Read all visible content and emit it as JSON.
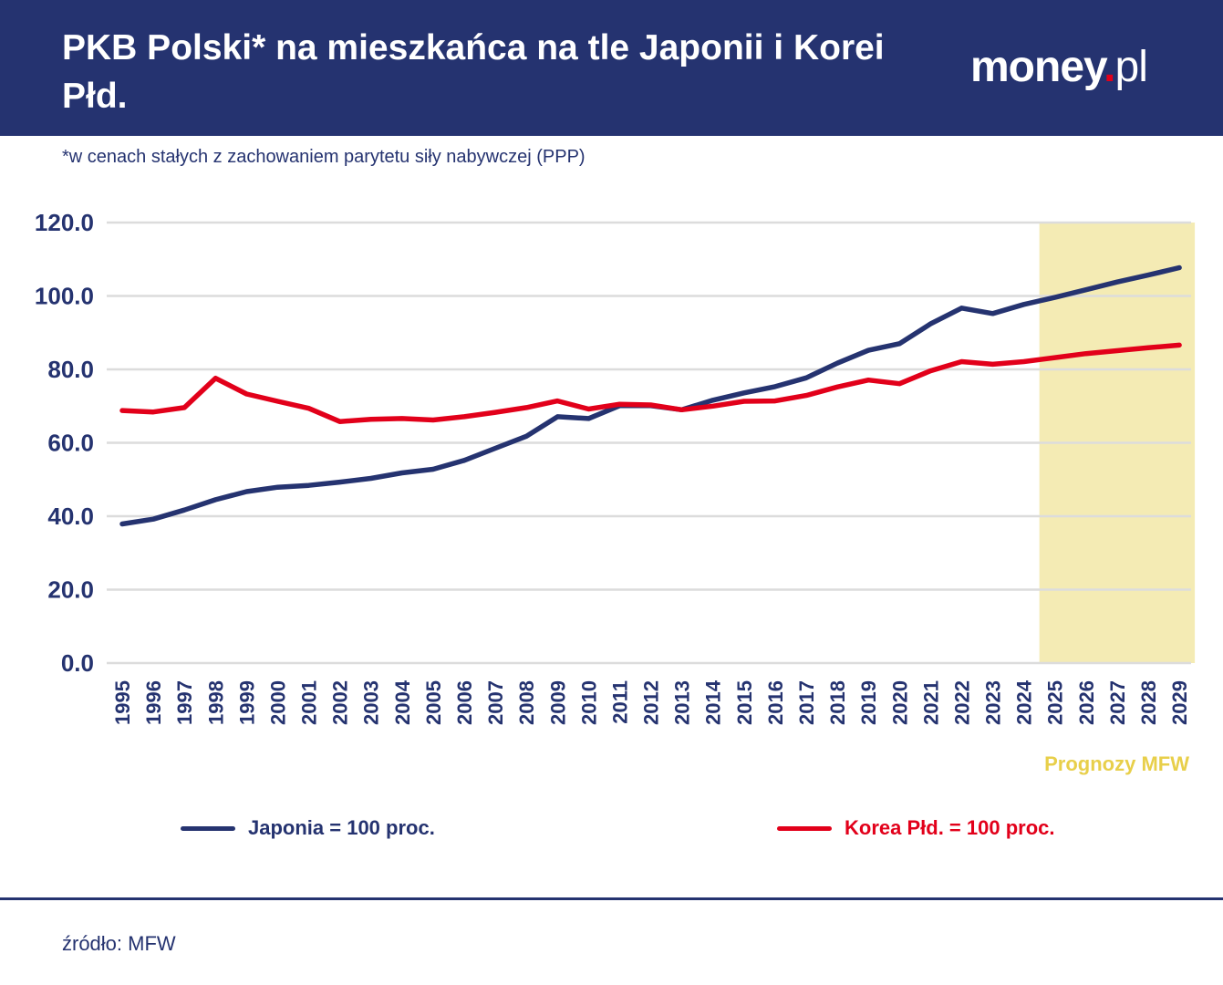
{
  "header": {
    "title": "PKB Polski* na mieszkańca na tle Japonii i Korei Płd.",
    "logo_main": "money",
    "logo_dot": ".",
    "logo_suffix": "pl"
  },
  "subtitle": "*w cenach stałych z zachowaniem parytetu siły nabywczej (PPP)",
  "source": "źródło: MFW",
  "colors": {
    "header_bg": "#253370",
    "japan": "#253370",
    "korea": "#e2001a",
    "forecast_band": "#f4ebb4",
    "forecast_label": "#e8cf4a",
    "grid": "#dcdcdc"
  },
  "chart_data": {
    "type": "line",
    "title": "",
    "xlabel": "",
    "ylabel": "",
    "x": [
      "1995",
      "1996",
      "1997",
      "1998",
      "1999",
      "2000",
      "2001",
      "2002",
      "2003",
      "2004",
      "2005",
      "2006",
      "2007",
      "2008",
      "2009",
      "2010",
      "2011",
      "2012",
      "2013",
      "2014",
      "2015",
      "2016",
      "2017",
      "2018",
      "2019",
      "2020",
      "2021",
      "2022",
      "2023",
      "2024",
      "2025",
      "2026",
      "2027",
      "2028",
      "2029"
    ],
    "ylim": [
      0,
      120
    ],
    "yticks": [
      "0.0",
      "20.0",
      "40.0",
      "60.0",
      "80.0",
      "100.0",
      "120.0"
    ],
    "grid": true,
    "legend_position": "bottom",
    "forecast": {
      "from": "2025",
      "to": "2029",
      "label": "Prognozy MFW"
    },
    "series": [
      {
        "name": "Japonia = 100 proc.",
        "color": "#253370",
        "values": [
          37.9,
          39.2,
          41.7,
          44.5,
          46.7,
          47.9,
          48.4,
          49.3,
          50.3,
          51.8,
          52.8,
          55.2,
          58.5,
          61.8,
          67.1,
          66.6,
          70.1,
          70.1,
          69.0,
          71.6,
          73.6,
          75.3,
          77.7,
          81.7,
          85.2,
          87.0,
          92.4,
          96.7,
          95.2,
          97.7,
          99.6,
          101.7,
          103.8,
          105.7,
          107.7
        ]
      },
      {
        "name": "Korea Płd. = 100 proc.",
        "color": "#e2001a",
        "values": [
          68.8,
          68.4,
          69.6,
          77.6,
          73.3,
          71.3,
          69.4,
          65.8,
          66.4,
          66.6,
          66.2,
          67.1,
          68.3,
          69.6,
          71.4,
          69.2,
          70.5,
          70.3,
          69.0,
          70.0,
          71.3,
          71.4,
          72.9,
          75.2,
          77.1,
          76.1,
          79.6,
          82.1,
          81.4,
          82.1,
          83.2,
          84.3,
          85.1,
          85.9,
          86.6
        ]
      }
    ]
  }
}
